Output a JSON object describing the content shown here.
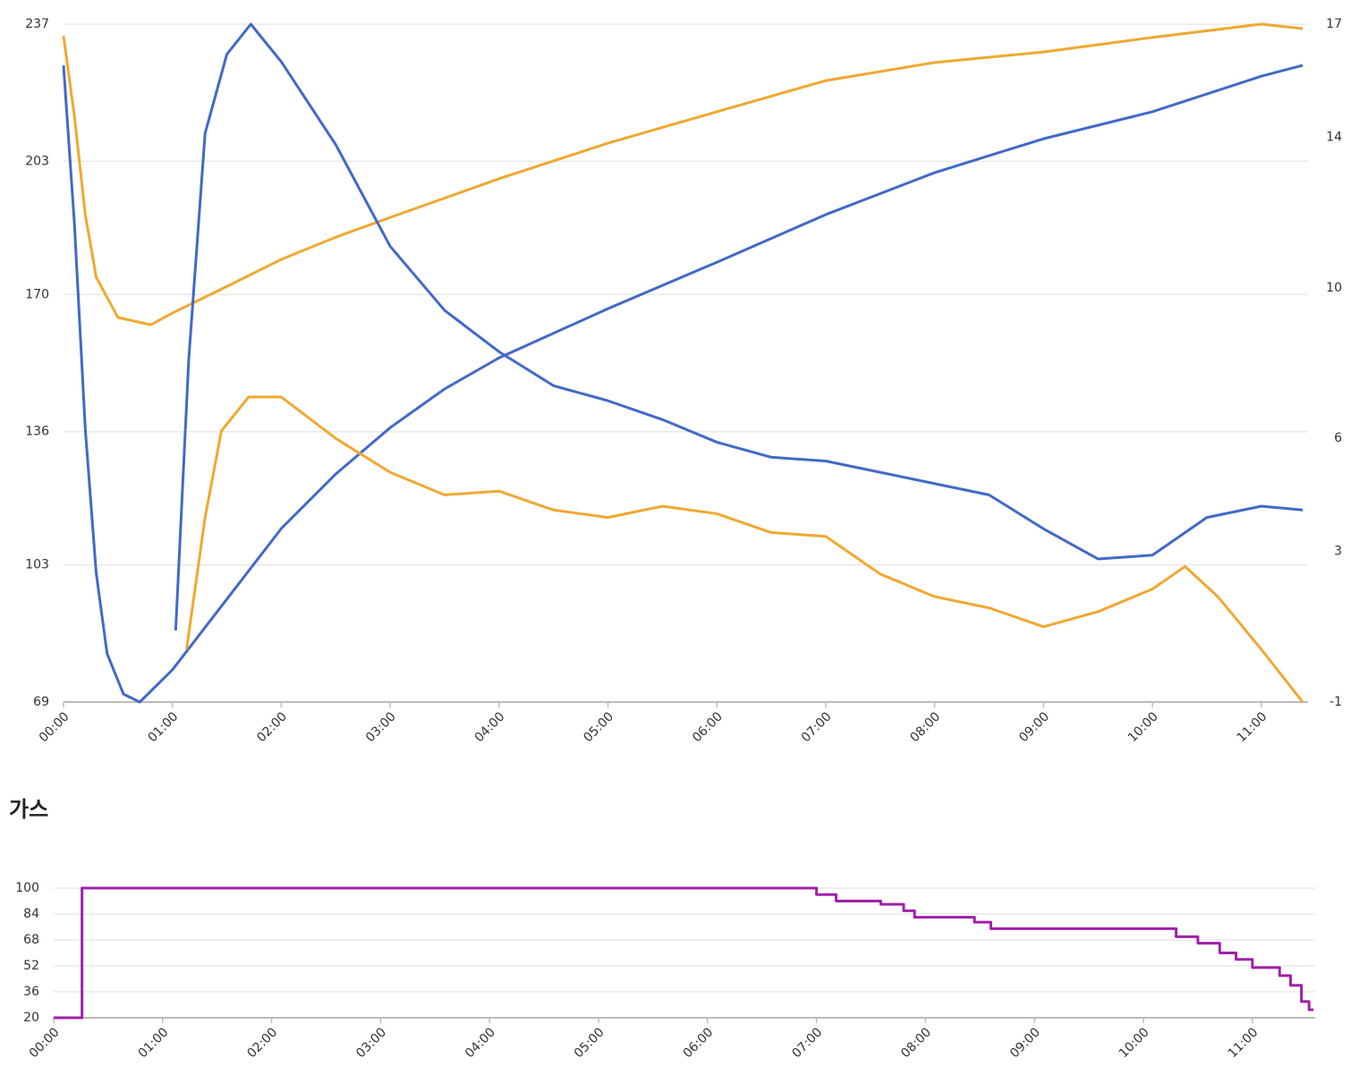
{
  "chart_data": [
    {
      "type": "line",
      "xlim": [
        0,
        11.38
      ],
      "xticks": [
        {
          "value": 0,
          "label": "00:00"
        },
        {
          "value": 1,
          "label": "01:00"
        },
        {
          "value": 2,
          "label": "02:00"
        },
        {
          "value": 3,
          "label": "03:00"
        },
        {
          "value": 4,
          "label": "04:00"
        },
        {
          "value": 5,
          "label": "05:00"
        },
        {
          "value": 6,
          "label": "06:00"
        },
        {
          "value": 7,
          "label": "07:00"
        },
        {
          "value": 8,
          "label": "08:00"
        },
        {
          "value": 9,
          "label": "09:00"
        },
        {
          "value": 10,
          "label": "10:00"
        },
        {
          "value": 11,
          "label": "11:00"
        }
      ],
      "ylim": [
        69,
        237
      ],
      "yticks": [
        69,
        103,
        136,
        170,
        203,
        237
      ],
      "y2lim": [
        -1,
        17
      ],
      "y2ticks": [
        -1,
        3,
        6,
        10,
        14,
        17
      ],
      "grid": true,
      "series": [
        {
          "color": "#4169c8",
          "x": [
            0,
            0.1,
            0.2,
            0.3,
            0.4,
            0.55,
            0.7,
            1,
            1.5,
            2,
            2.5,
            3,
            3.5,
            4,
            5,
            6,
            7,
            8,
            9,
            10,
            11,
            11.38
          ],
          "values": [
            226.8,
            187.6,
            136.6,
            101,
            81,
            71,
            69,
            77,
            94.5,
            112,
            125.5,
            137,
            146.6,
            154.3,
            166.5,
            178,
            189.8,
            200.2,
            208.6,
            215.3,
            224.1,
            226.8
          ]
        },
        {
          "color": "#f0a830",
          "x": [
            0,
            0.1,
            0.2,
            0.3,
            0.5,
            0.8,
            1,
            1.5,
            2,
            2.5,
            3,
            4,
            5,
            6,
            7,
            8,
            9,
            10,
            11,
            11.38
          ],
          "values": [
            234.1,
            214.2,
            189.8,
            174.3,
            164.3,
            162.5,
            165.4,
            172,
            178.7,
            184.2,
            189.1,
            198.7,
            207.5,
            215.3,
            223,
            227.5,
            230.1,
            233.7,
            237,
            235.9
          ]
        },
        {
          "color": "#4169c8",
          "axis": "y2",
          "x": [
            1.03,
            1.15,
            1.3,
            1.5,
            1.72,
            2,
            2.5,
            3,
            3.5,
            4,
            4.5,
            5,
            5.5,
            6,
            6.5,
            7,
            7.5,
            8,
            8.5,
            9,
            9.5,
            10,
            10.5,
            11,
            11.38
          ],
          "values": [
            0.9,
            8.1,
            14.1,
            16.2,
            17,
            16,
            13.8,
            11.1,
            9.4,
            8.3,
            7.4,
            7,
            6.5,
            5.9,
            5.5,
            5.4,
            5.1,
            4.8,
            4.5,
            3.6,
            2.8,
            2.9,
            3.9,
            4.2,
            4.1
          ]
        },
        {
          "color": "#f0a830",
          "axis": "y2",
          "x": [
            1.13,
            1.3,
            1.45,
            1.7,
            2,
            2.5,
            3,
            3.5,
            4,
            4.5,
            5,
            5.5,
            6,
            6.5,
            7,
            7.5,
            8,
            8.5,
            9,
            9.5,
            10,
            10.3,
            10.6,
            11,
            11.38
          ],
          "values": [
            0.4,
            3.9,
            6.2,
            7.1,
            7.1,
            6,
            5.1,
            4.5,
            4.6,
            4.1,
            3.9,
            4.2,
            4,
            3.5,
            3.4,
            2.4,
            1.8,
            1.5,
            1,
            1.4,
            2,
            2.6,
            1.8,
            0.4,
            -1
          ]
        }
      ]
    },
    {
      "type": "step",
      "title": "가스",
      "xlim": [
        0,
        11.56
      ],
      "xticks": [
        {
          "value": 0,
          "label": "00:00"
        },
        {
          "value": 1,
          "label": "01:00"
        },
        {
          "value": 2,
          "label": "02:00"
        },
        {
          "value": 3,
          "label": "03:00"
        },
        {
          "value": 4,
          "label": "04:00"
        },
        {
          "value": 5,
          "label": "05:00"
        },
        {
          "value": 6,
          "label": "06:00"
        },
        {
          "value": 7,
          "label": "07:00"
        },
        {
          "value": 8,
          "label": "08:00"
        },
        {
          "value": 9,
          "label": "09:00"
        },
        {
          "value": 10,
          "label": "10:00"
        },
        {
          "value": 11,
          "label": "11:00"
        }
      ],
      "ylim": [
        20,
        100
      ],
      "yticks": [
        20,
        36,
        52,
        68,
        84,
        100
      ],
      "grid": true,
      "series": [
        {
          "color": "#a020a8",
          "x": [
            0,
            0.26,
            7,
            7.18,
            7.59,
            7.8,
            7.9,
            8.45,
            8.6,
            10.3,
            10.5,
            10.7,
            10.85,
            11,
            11.25,
            11.35,
            11.45,
            11.52,
            11.56
          ],
          "values": [
            20,
            100,
            96,
            92,
            90,
            86,
            82,
            79,
            75,
            70,
            66,
            60,
            56,
            51,
            46,
            40,
            30,
            25,
            25
          ]
        }
      ]
    }
  ]
}
